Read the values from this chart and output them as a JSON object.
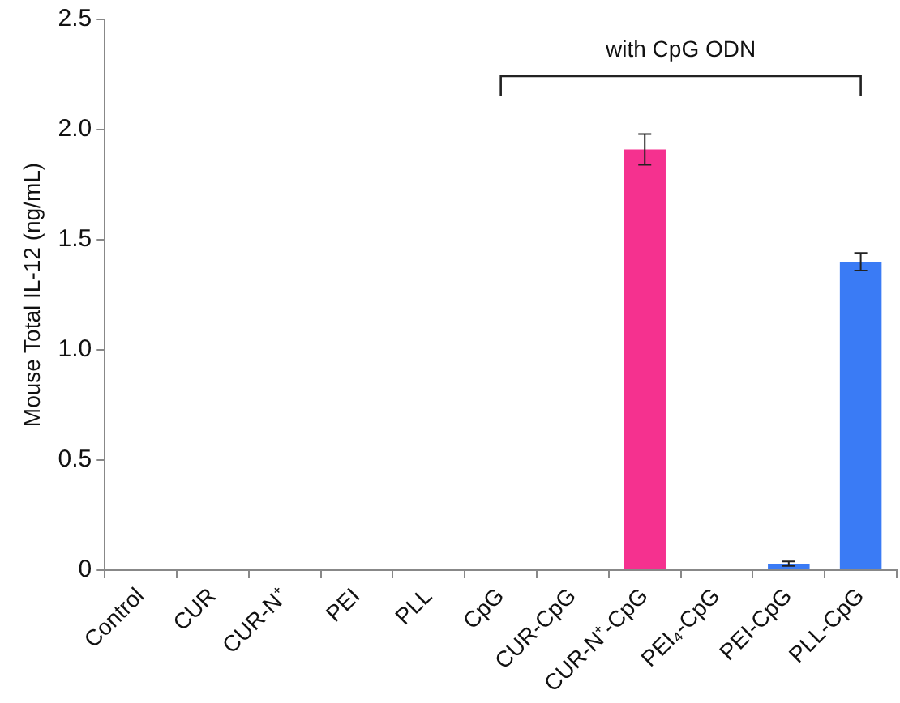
{
  "chart_data": {
    "type": "bar",
    "ylabel": "Mouse Total IL-12 (ng/mL)",
    "categories": [
      "Control",
      "CUR",
      "CUR-N⁺",
      "PEI",
      "PLL",
      "CpG",
      "CUR-CpG",
      "CUR-N⁺-CpG",
      "PEI₄-CpG",
      "PEI-CpG",
      "PLL-CpG"
    ],
    "values": [
      0,
      0,
      0,
      0,
      0,
      0,
      0,
      1.91,
      0,
      0.03,
      1.4
    ],
    "colors": [
      "#3a7bf5",
      "#3a7bf5",
      "#3a7bf5",
      "#3a7bf5",
      "#3a7bf5",
      "#3a7bf5",
      "#3a7bf5",
      "#f5318f",
      "#3a7bf5",
      "#3a7bf5",
      "#3a7bf5"
    ],
    "errors": [
      null,
      null,
      null,
      null,
      null,
      null,
      null,
      0.07,
      null,
      0.01,
      0.04
    ],
    "ylim": [
      0,
      2.5
    ],
    "yticks": [
      0,
      {
        "value": 0.5,
        "label": "0.5"
      },
      {
        "value": 1,
        "label": "1.0"
      },
      {
        "value": 1.5,
        "label": "1.5"
      },
      {
        "value": 2,
        "label": "2.0"
      },
      {
        "value": 2.5,
        "label": "2.5"
      }
    ],
    "annotations": [
      "with CpG ODN"
    ],
    "grid": false,
    "legend": false
  }
}
